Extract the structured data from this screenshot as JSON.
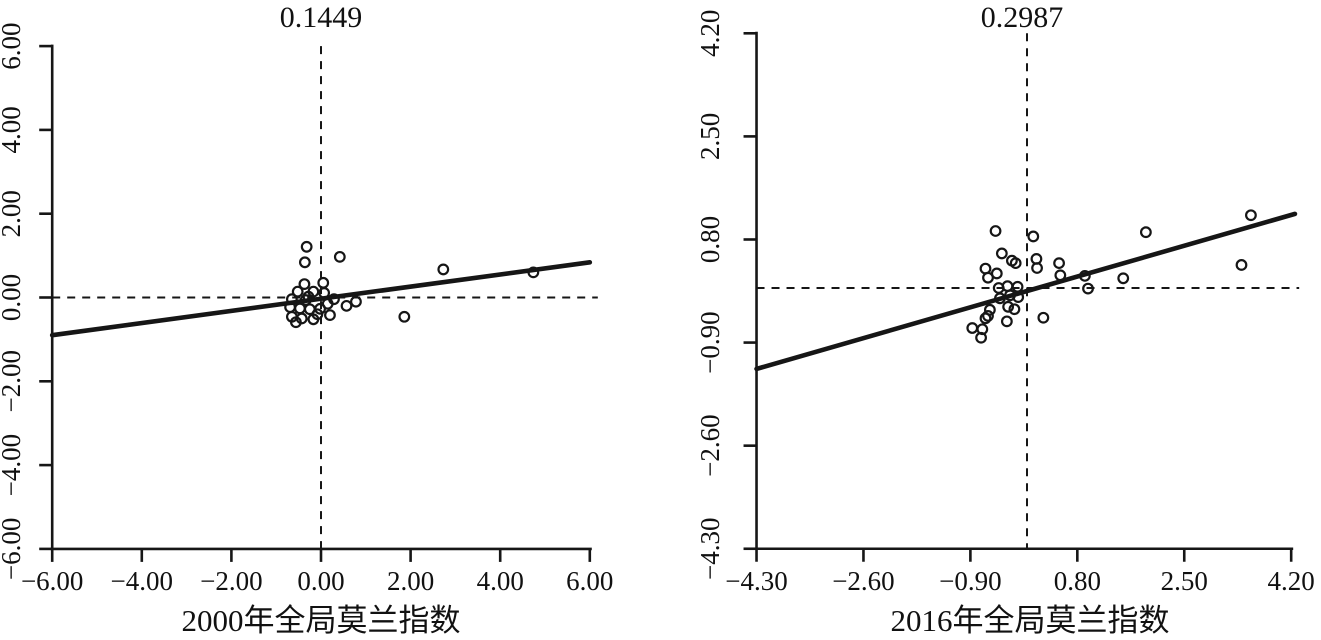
{
  "figure": {
    "background": "#ffffff",
    "ink_color": "#161616"
  },
  "chart_data": [
    {
      "type": "scatter",
      "title": "0.1449",
      "moran_index": 0.1449,
      "xlabel": "2000年全局莫兰指数",
      "axis_range": [
        -6,
        6
      ],
      "tick_values": [
        -6,
        -4,
        -2,
        0,
        2,
        4,
        6
      ],
      "tick_labels": [
        "−6.00",
        "−4.00",
        "−2.00",
        "0.00",
        "2.00",
        "4.00",
        "6.00"
      ],
      "grid": false,
      "reference_lines": {
        "x": 0,
        "y": 0
      },
      "regression": {
        "slope": 0.1449,
        "intercept": -0.03
      },
      "points": [
        [
          -0.32,
          1.21
        ],
        [
          -0.36,
          0.84
        ],
        [
          0.42,
          0.97
        ],
        [
          2.73,
          0.67
        ],
        [
          4.74,
          0.6
        ],
        [
          -0.37,
          0.32
        ],
        [
          0.05,
          0.35
        ],
        [
          -0.52,
          0.14
        ],
        [
          -0.17,
          0.14
        ],
        [
          0.07,
          0.11
        ],
        [
          -0.28,
          0.02
        ],
        [
          -0.65,
          -0.04
        ],
        [
          -0.34,
          -0.06
        ],
        [
          0.29,
          -0.04
        ],
        [
          -0.69,
          -0.23
        ],
        [
          -0.47,
          -0.26
        ],
        [
          -0.25,
          -0.28
        ],
        [
          -0.02,
          -0.27
        ],
        [
          0.15,
          -0.15
        ],
        [
          0.2,
          -0.42
        ],
        [
          -0.65,
          -0.46
        ],
        [
          -0.43,
          -0.5
        ],
        [
          -0.17,
          -0.52
        ],
        [
          -0.56,
          -0.59
        ],
        [
          0.57,
          -0.2
        ],
        [
          0.78,
          -0.1
        ],
        [
          1.86,
          -0.46
        ],
        [
          -0.08,
          -0.4
        ]
      ]
    },
    {
      "type": "scatter",
      "title": "0.2987",
      "moran_index": 0.2987,
      "xlabel": "2016年全局莫兰指数",
      "axis_range": [
        -4.3,
        4.2
      ],
      "tick_values": [
        -4.3,
        -2.6,
        -0.9,
        0.8,
        2.5,
        4.2
      ],
      "tick_labels": [
        "−4.30",
        "−2.60",
        "−0.90",
        "0.80",
        "2.50",
        "4.20"
      ],
      "grid": false,
      "reference_lines": {
        "x": 0,
        "y": 0
      },
      "regression": {
        "slope": 0.2987,
        "intercept": -0.05
      },
      "points": [
        [
          -0.5,
          0.94
        ],
        [
          0.1,
          0.85
        ],
        [
          -0.4,
          0.57
        ],
        [
          -0.24,
          0.45
        ],
        [
          -0.18,
          0.41
        ],
        [
          -0.66,
          0.32
        ],
        [
          -0.48,
          0.24
        ],
        [
          -0.62,
          0.17
        ],
        [
          0.15,
          0.48
        ],
        [
          0.16,
          0.33
        ],
        [
          0.51,
          0.41
        ],
        [
          0.53,
          0.21
        ],
        [
          0.92,
          0.2
        ],
        [
          1.53,
          0.16
        ],
        [
          0.97,
          -0.01
        ],
        [
          -0.45,
          0.0
        ],
        [
          -0.31,
          0.03
        ],
        [
          -0.15,
          0.02
        ],
        [
          -0.27,
          -0.12
        ],
        [
          -0.14,
          -0.15
        ],
        [
          -0.43,
          -0.17
        ],
        [
          -0.3,
          -0.31
        ],
        [
          -0.2,
          -0.35
        ],
        [
          -0.59,
          -0.36
        ],
        [
          -0.62,
          -0.46
        ],
        [
          -0.66,
          -0.5
        ],
        [
          -0.32,
          -0.55
        ],
        [
          0.26,
          -0.49
        ],
        [
          -0.87,
          -0.66
        ],
        [
          -0.71,
          -0.68
        ],
        [
          -0.73,
          -0.82
        ],
        [
          1.89,
          0.92
        ],
        [
          3.56,
          1.2
        ],
        [
          3.41,
          0.38
        ]
      ]
    }
  ]
}
